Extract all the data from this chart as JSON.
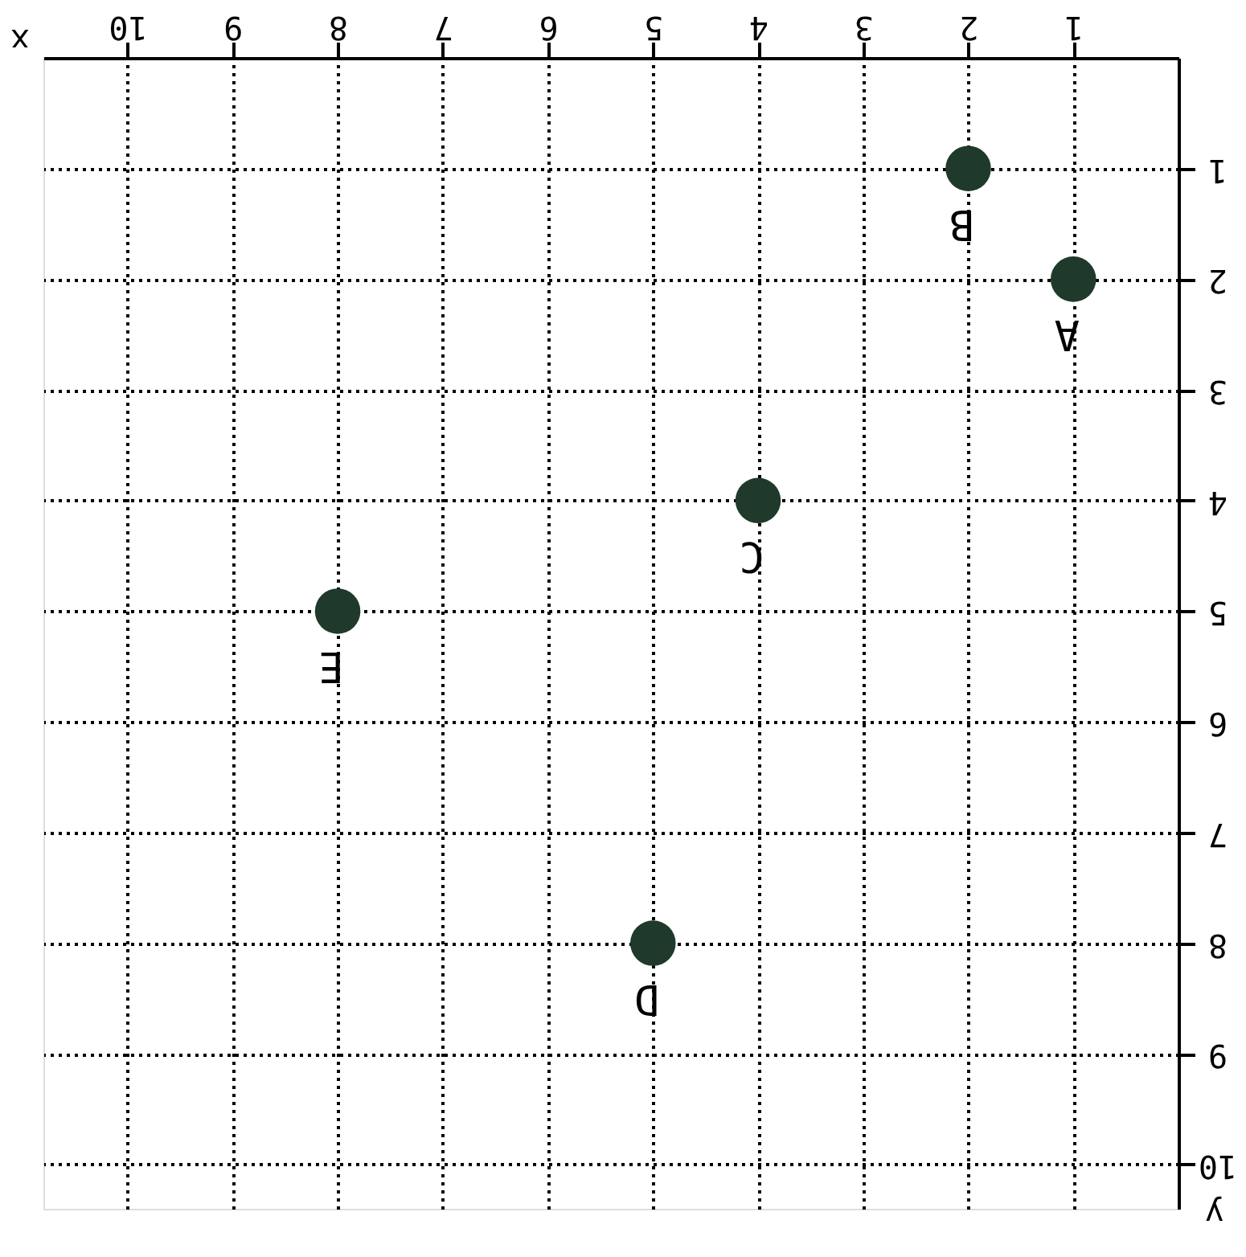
{
  "chart_data": {
    "type": "scatter",
    "xlabel": "x",
    "ylabel": "y",
    "x": [
      1,
      2,
      4,
      5,
      8
    ],
    "series": [
      {
        "color": "#1f3a2a",
        "values": [
          2,
          1,
          4,
          8,
          5
        ]
      }
    ],
    "xlim": [
      10.8,
      0
    ],
    "ylim": [
      10.4,
      0
    ],
    "xticks": [
      1,
      2,
      3,
      4,
      5,
      6,
      7,
      8,
      9,
      10
    ],
    "yticks": [
      1,
      2,
      3,
      4,
      5,
      6,
      7,
      8,
      9,
      10
    ],
    "grid": true,
    "marker": "circle",
    "annotations": [
      {
        "text": "A",
        "x": 1,
        "y": 2
      },
      {
        "text": "B",
        "x": 2,
        "y": 1
      },
      {
        "text": "C",
        "x": 4,
        "y": 4
      },
      {
        "text": "D",
        "x": 5,
        "y": 8
      },
      {
        "text": "E",
        "x": 8,
        "y": 5
      }
    ]
  }
}
